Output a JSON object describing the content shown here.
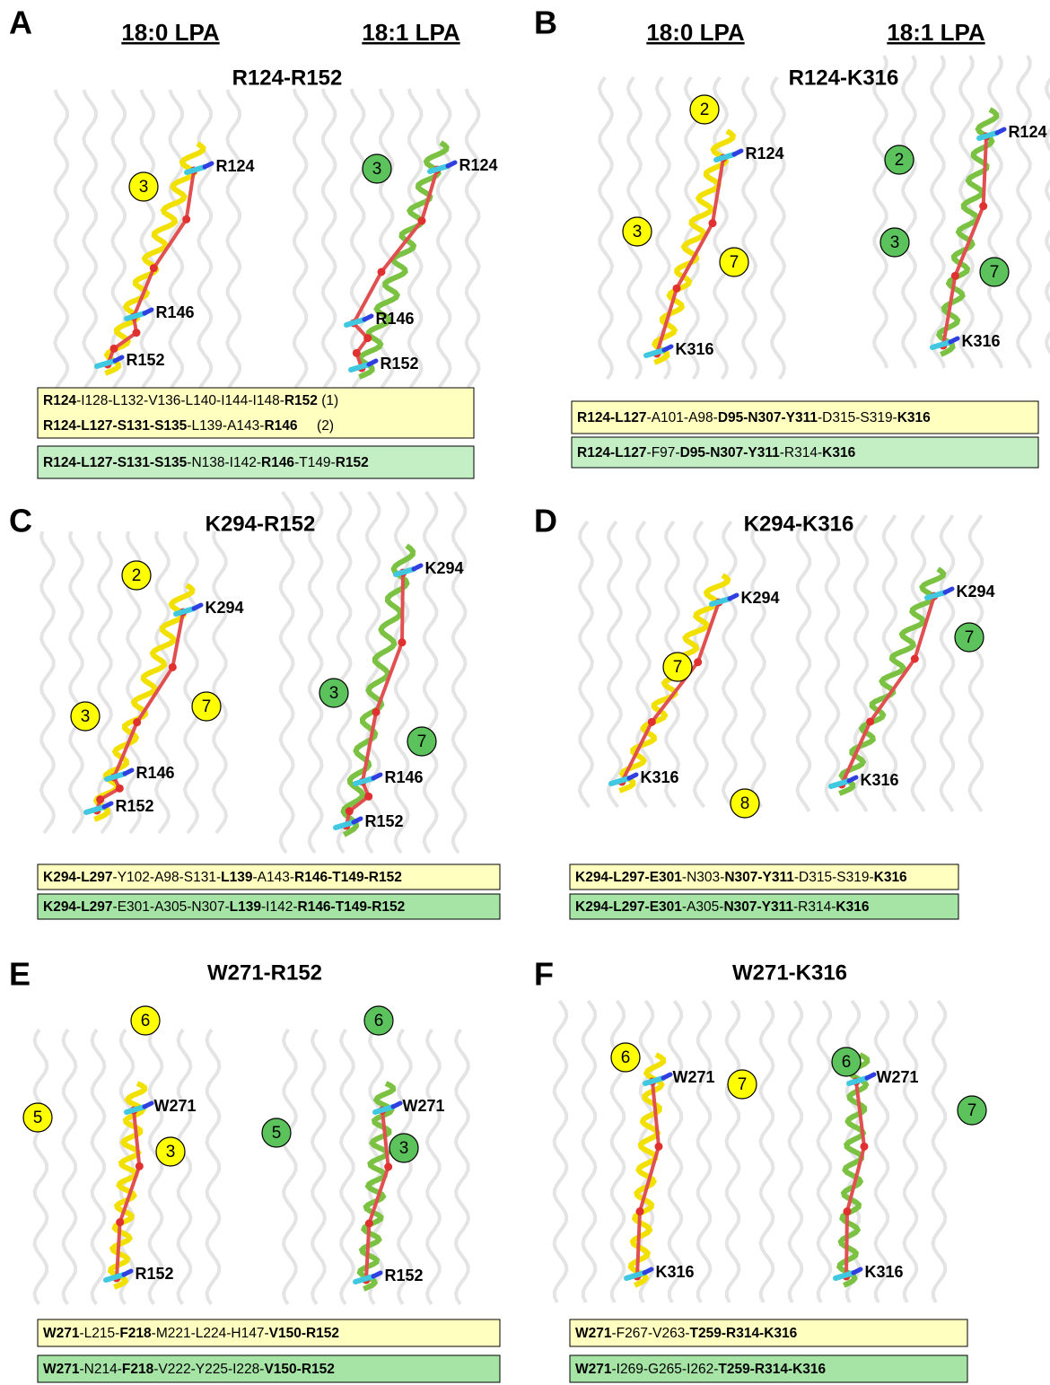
{
  "panels": [
    {
      "letter": "A",
      "headers": [
        "18:0 LPA",
        "18:1 LPA"
      ],
      "title": "R124-R152",
      "structures": [
        {
          "helices": [
            "3"
          ],
          "residues": [
            "R124",
            "R146",
            "R152"
          ]
        },
        {
          "helices": [
            "3"
          ],
          "residues": [
            "R124",
            "R146",
            "R152"
          ]
        }
      ],
      "boxes": [
        {
          "color": "#ffffc0",
          "lines": [
            [
              {
                "text": "R124",
                "bold": true
              },
              {
                "text": "-I128-L132-V136-L140-I144-I148-",
                "bold": false
              },
              {
                "text": "R152",
                "bold": true
              },
              {
                "text": " (1)",
                "bold": false
              }
            ],
            [
              {
                "text": "R124-L127-S131-S135",
                "bold": true
              },
              {
                "text": "-L139-A143-",
                "bold": false
              },
              {
                "text": "R146",
                "bold": true
              },
              {
                "text": "     (2)",
                "bold": false
              }
            ]
          ]
        },
        {
          "color": "#c4eec4",
          "lines": [
            [
              {
                "text": "R124-L127-S131-S135",
                "bold": true
              },
              {
                "text": "-N138-I142-",
                "bold": false
              },
              {
                "text": "R146",
                "bold": true
              },
              {
                "text": "-T149-",
                "bold": false
              },
              {
                "text": "R152",
                "bold": true
              }
            ]
          ]
        }
      ]
    },
    {
      "letter": "B",
      "headers": [
        "18:0 LPA",
        "18:1 LPA"
      ],
      "title": "R124-K316",
      "structures": [
        {
          "helices": [
            "2",
            "3",
            "7"
          ],
          "residues": [
            "R124",
            "K316"
          ]
        },
        {
          "helices": [
            "2",
            "3",
            "7"
          ],
          "residues": [
            "R124",
            "K316"
          ]
        }
      ],
      "boxes": [
        {
          "color": "#ffffc0",
          "lines": [
            [
              {
                "text": "R124-L127",
                "bold": true
              },
              {
                "text": "-A101-A98-",
                "bold": false
              },
              {
                "text": "D95-N307-Y311",
                "bold": true
              },
              {
                "text": "-D315-S319-",
                "bold": false
              },
              {
                "text": "K316",
                "bold": true
              }
            ]
          ]
        },
        {
          "color": "#c4eec4",
          "lines": [
            [
              {
                "text": "R124-L127",
                "bold": true
              },
              {
                "text": "-F97-",
                "bold": false
              },
              {
                "text": "D95-N307-Y311",
                "bold": true
              },
              {
                "text": "-R314-",
                "bold": false
              },
              {
                "text": "K316",
                "bold": true
              }
            ]
          ]
        }
      ]
    },
    {
      "letter": "C",
      "title": "K294-R152",
      "structures": [
        {
          "helices": [
            "2",
            "3",
            "7"
          ],
          "residues": [
            "K294",
            "R146",
            "R152"
          ]
        },
        {
          "helices": [
            "3",
            "7"
          ],
          "residues": [
            "K294",
            "R146",
            "R152"
          ]
        }
      ],
      "boxes": [
        {
          "color": "#ffffc0",
          "lines": [
            [
              {
                "text": "K294-L297",
                "bold": true
              },
              {
                "text": "-Y102-A98-S131-",
                "bold": false
              },
              {
                "text": "L139",
                "bold": true
              },
              {
                "text": "-A143-",
                "bold": false
              },
              {
                "text": "R146-T149-R152",
                "bold": true
              }
            ]
          ]
        },
        {
          "color": "#a6e4a6",
          "lines": [
            [
              {
                "text": "K294-L297",
                "bold": true
              },
              {
                "text": "-E301-A305-N307-",
                "bold": false
              },
              {
                "text": "L139",
                "bold": true
              },
              {
                "text": "-I142-",
                "bold": false
              },
              {
                "text": "R146-T149-R152",
                "bold": true
              }
            ]
          ]
        }
      ]
    },
    {
      "letter": "D",
      "title": "K294-K316",
      "structures": [
        {
          "helices": [
            "7",
            "8"
          ],
          "residues": [
            "K294",
            "K316"
          ]
        },
        {
          "helices": [
            "7"
          ],
          "residues": [
            "K294",
            "K316"
          ]
        }
      ],
      "boxes": [
        {
          "color": "#ffffc0",
          "lines": [
            [
              {
                "text": "K294-L297-E301",
                "bold": true
              },
              {
                "text": "-N303-",
                "bold": false
              },
              {
                "text": "N307-Y311",
                "bold": true
              },
              {
                "text": "-D315-S319-",
                "bold": false
              },
              {
                "text": "K316",
                "bold": true
              }
            ]
          ]
        },
        {
          "color": "#a6e4a6",
          "lines": [
            [
              {
                "text": "K294-L297-E301",
                "bold": true
              },
              {
                "text": "-A305-",
                "bold": false
              },
              {
                "text": "N307-Y311",
                "bold": true
              },
              {
                "text": "-R314-",
                "bold": false
              },
              {
                "text": "K316",
                "bold": true
              }
            ]
          ]
        }
      ]
    },
    {
      "letter": "E",
      "title": "W271-R152",
      "structures": [
        {
          "helices": [
            "6",
            "5",
            "3"
          ],
          "residues": [
            "W271",
            "R152"
          ]
        },
        {
          "helices": [
            "6",
            "5",
            "3"
          ],
          "residues": [
            "W271",
            "R152"
          ]
        }
      ],
      "boxes": [
        {
          "color": "#ffffc0",
          "lines": [
            [
              {
                "text": "W271",
                "bold": true
              },
              {
                "text": "-L215-",
                "bold": false
              },
              {
                "text": "F218",
                "bold": true
              },
              {
                "text": "-M221-L224-H147-",
                "bold": false
              },
              {
                "text": "V150-R152",
                "bold": true
              }
            ]
          ]
        },
        {
          "color": "#a6e4a6",
          "lines": [
            [
              {
                "text": "W271",
                "bold": true
              },
              {
                "text": "-N214-",
                "bold": false
              },
              {
                "text": "F218",
                "bold": true
              },
              {
                "text": "-V222-Y225-I228-",
                "bold": false
              },
              {
                "text": "V150-R152",
                "bold": true
              }
            ]
          ]
        }
      ]
    },
    {
      "letter": "F",
      "title": "W271-K316",
      "structures": [
        {
          "helices": [
            "6",
            "7"
          ],
          "residues": [
            "W271",
            "K316"
          ]
        },
        {
          "helices": [
            "6",
            "7"
          ],
          "residues": [
            "W271",
            "K316"
          ]
        }
      ],
      "boxes": [
        {
          "color": "#ffffc0",
          "lines": [
            [
              {
                "text": "W271",
                "bold": true
              },
              {
                "text": "-F267-V263-",
                "bold": false
              },
              {
                "text": "T259-R314-K316",
                "bold": true
              }
            ]
          ]
        },
        {
          "color": "#a6e4a6",
          "lines": [
            [
              {
                "text": "W271",
                "bold": true
              },
              {
                "text": "-I269-G265-I262-",
                "bold": false
              },
              {
                "text": "T259-R314-K316",
                "bold": true
              }
            ]
          ]
        }
      ]
    }
  ]
}
